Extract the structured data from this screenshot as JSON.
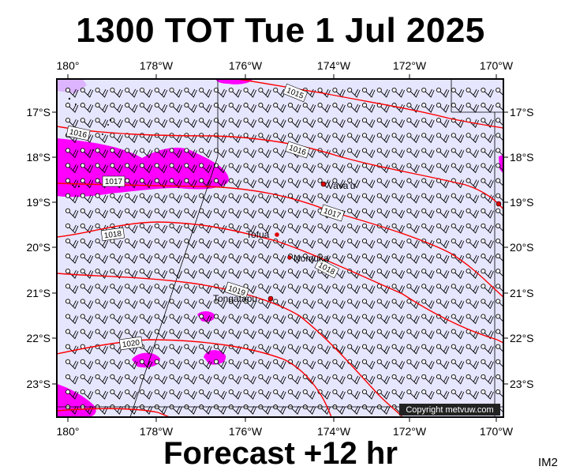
{
  "title": "1300 TOT Tue 1 Jul 2025",
  "footer": "Forecast +12 hr",
  "corner_code": "IM2",
  "copyright": "Copyright metvuw.com",
  "lon_labels": [
    "180°",
    "178°W",
    "176°W",
    "174°W",
    "172°W",
    "170°W"
  ],
  "lat_labels": [
    "17°S",
    "18°S",
    "19°S",
    "20°S",
    "21°S",
    "22°S",
    "23°S"
  ],
  "isobar_labels": [
    "1015",
    "1016",
    "1016",
    "1017",
    "1017",
    "1018",
    "1018",
    "1019",
    "1020"
  ],
  "places": [
    {
      "name": "Vava'u"
    },
    {
      "name": "Tofua"
    },
    {
      "name": "Nomuka"
    },
    {
      "name": "Tongatapu"
    }
  ],
  "colors": {
    "sea": "#e6e6ff",
    "rain": "#ff00ff",
    "rain_light": "#dcb4ff",
    "isobar": "#ff0000",
    "place_dot": "#dd0000"
  }
}
